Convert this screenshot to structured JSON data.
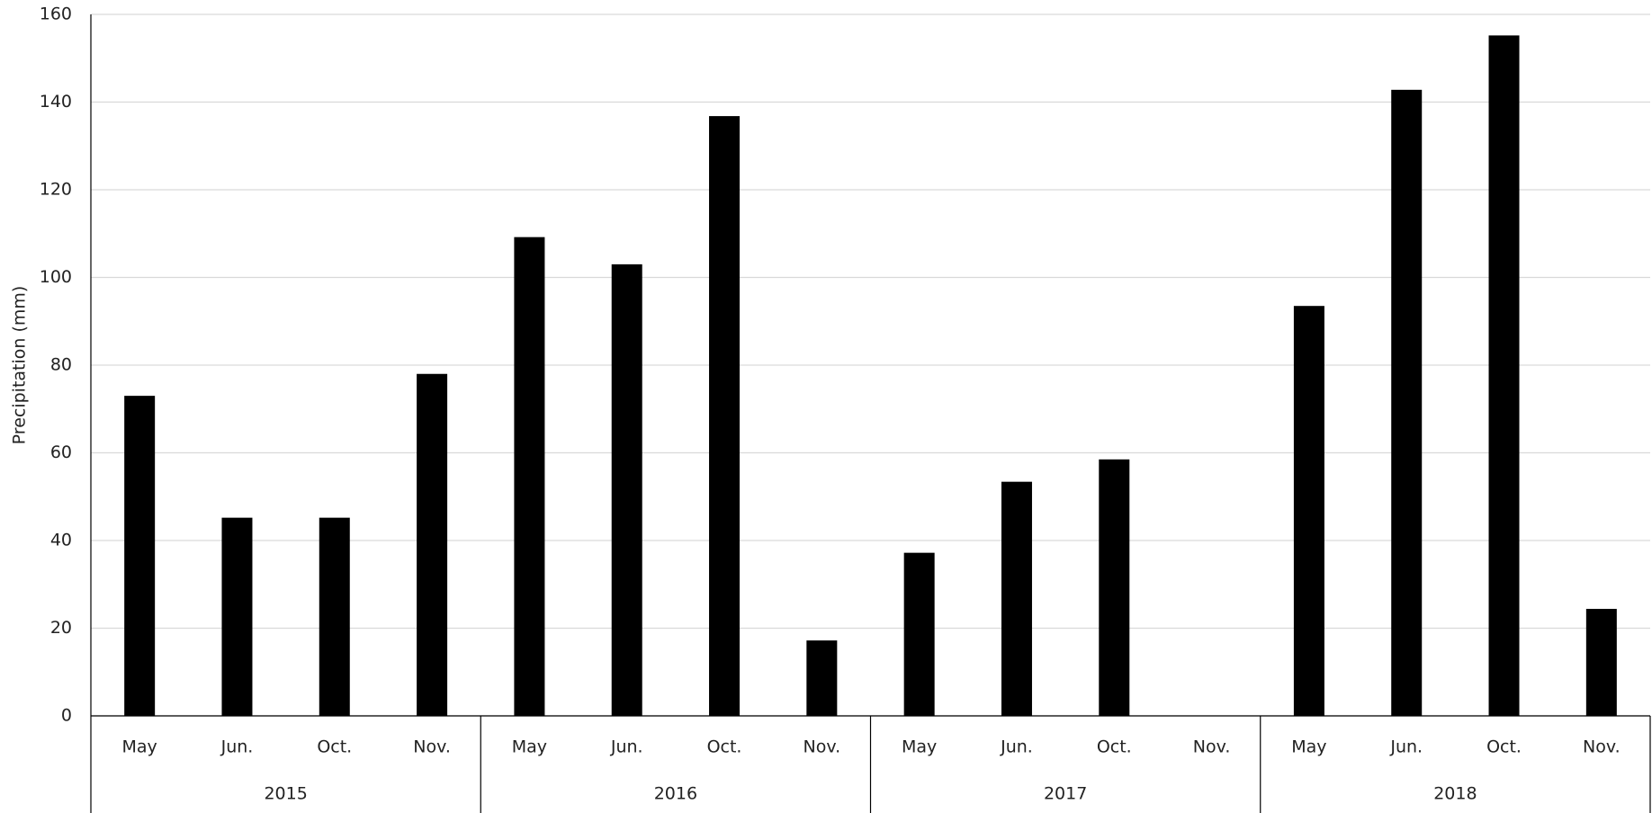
{
  "chart_data": {
    "type": "bar",
    "y_label": "Precipitation (mm)",
    "groups": [
      {
        "name": "2015",
        "categories": [
          "May",
          "Jun.",
          "Oct.",
          "Nov."
        ],
        "values": [
          73,
          45.2,
          45.2,
          78
        ]
      },
      {
        "name": "2016",
        "categories": [
          "May",
          "Jun.",
          "Oct.",
          "Nov."
        ],
        "values": [
          109.2,
          103,
          136.8,
          17.2
        ]
      },
      {
        "name": "2017",
        "categories": [
          "May",
          "Jun.",
          "Oct.",
          "Nov."
        ],
        "values": [
          37.2,
          53.4,
          58.5,
          null
        ]
      },
      {
        "name": "2018",
        "categories": [
          "May",
          "Jun.",
          "Oct.",
          "Nov."
        ],
        "values": [
          93.5,
          142.8,
          155.2,
          24.4
        ]
      }
    ],
    "color": "#000000",
    "ylim": [
      0,
      160
    ],
    "yticks": [
      0,
      20,
      40,
      60,
      80,
      100,
      120,
      140,
      160
    ],
    "grid": true
  }
}
